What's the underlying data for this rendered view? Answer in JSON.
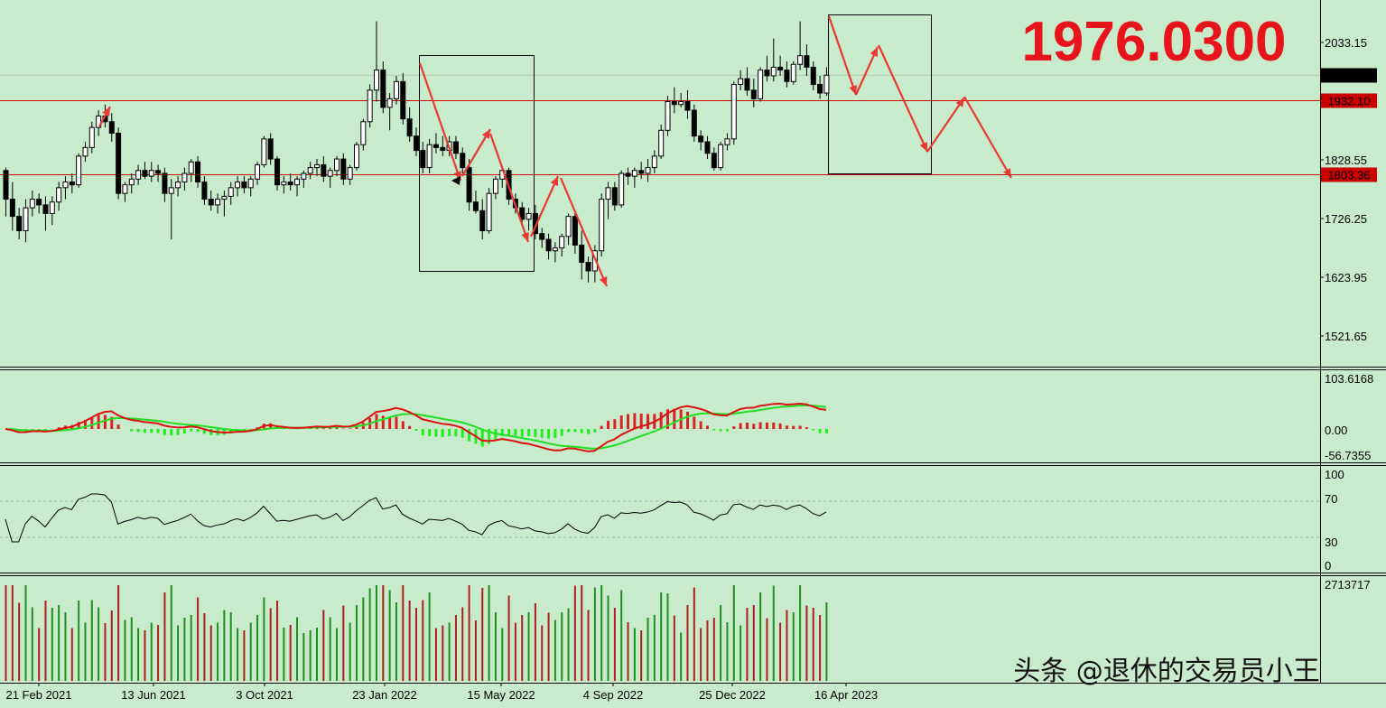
{
  "chart_data": [
    {
      "type": "candlestick",
      "panel": "price",
      "title": "1976.0300",
      "ylim": [
        1440,
        2110
      ],
      "yticks": [
        "2033.15",
        "1828.55",
        "1726.25",
        "1623.95",
        "1521.65"
      ],
      "x_labels": [
        "21 Feb 2021",
        "13 Jun 2021",
        "3 Oct 2021",
        "23 Jan 2022",
        "15 May 2022",
        "4 Sep 2022",
        "25 Dec 2022",
        "16 Apr 2023"
      ],
      "current_price": "1976.03",
      "levels": [
        {
          "label": "1932.10",
          "value": 1932.1,
          "color": "#cc0000"
        },
        {
          "label": "1803.36",
          "value": 1803.36,
          "color": "#cc0000"
        }
      ],
      "ohlc": [
        [
          1810,
          1815,
          1730,
          1760
        ],
        [
          1760,
          1790,
          1705,
          1730
        ],
        [
          1730,
          1745,
          1690,
          1705
        ],
        [
          1705,
          1760,
          1685,
          1745
        ],
        [
          1745,
          1775,
          1730,
          1760
        ],
        [
          1760,
          1770,
          1735,
          1750
        ],
        [
          1750,
          1765,
          1705,
          1735
        ],
        [
          1735,
          1765,
          1715,
          1755
        ],
        [
          1755,
          1790,
          1740,
          1780
        ],
        [
          1780,
          1800,
          1760,
          1790
        ],
        [
          1790,
          1805,
          1770,
          1785
        ],
        [
          1785,
          1840,
          1780,
          1835
        ],
        [
          1835,
          1860,
          1825,
          1850
        ],
        [
          1850,
          1895,
          1840,
          1885
        ],
        [
          1885,
          1915,
          1870,
          1905
        ],
        [
          1905,
          1925,
          1885,
          1895
        ],
        [
          1895,
          1910,
          1860,
          1875
        ],
        [
          1875,
          1885,
          1760,
          1770
        ],
        [
          1770,
          1790,
          1755,
          1785
        ],
        [
          1785,
          1805,
          1770,
          1795
        ],
        [
          1795,
          1820,
          1785,
          1810
        ],
        [
          1810,
          1825,
          1795,
          1800
        ],
        [
          1800,
          1825,
          1790,
          1810
        ],
        [
          1810,
          1820,
          1790,
          1805
        ],
        [
          1805,
          1815,
          1755,
          1770
        ],
        [
          1770,
          1795,
          1690,
          1780
        ],
        [
          1780,
          1800,
          1765,
          1790
        ],
        [
          1790,
          1815,
          1775,
          1805
        ],
        [
          1805,
          1830,
          1790,
          1825
        ],
        [
          1825,
          1835,
          1780,
          1790
        ],
        [
          1790,
          1800,
          1750,
          1760
        ],
        [
          1760,
          1775,
          1740,
          1750
        ],
        [
          1750,
          1770,
          1735,
          1760
        ],
        [
          1760,
          1775,
          1730,
          1765
        ],
        [
          1765,
          1790,
          1750,
          1780
        ],
        [
          1780,
          1800,
          1765,
          1790
        ],
        [
          1790,
          1800,
          1770,
          1780
        ],
        [
          1780,
          1800,
          1765,
          1795
        ],
        [
          1795,
          1825,
          1785,
          1820
        ],
        [
          1820,
          1870,
          1815,
          1865
        ],
        [
          1865,
          1875,
          1820,
          1830
        ],
        [
          1830,
          1835,
          1775,
          1785
        ],
        [
          1785,
          1800,
          1770,
          1790
        ],
        [
          1790,
          1805,
          1775,
          1785
        ],
        [
          1785,
          1800,
          1765,
          1795
        ],
        [
          1795,
          1810,
          1780,
          1805
        ],
        [
          1805,
          1825,
          1795,
          1815
        ],
        [
          1815,
          1830,
          1800,
          1820
        ],
        [
          1820,
          1835,
          1790,
          1800
        ],
        [
          1800,
          1815,
          1780,
          1810
        ],
        [
          1810,
          1835,
          1800,
          1830
        ],
        [
          1830,
          1840,
          1785,
          1795
        ],
        [
          1795,
          1820,
          1785,
          1815
        ],
        [
          1815,
          1860,
          1810,
          1855
        ],
        [
          1855,
          1900,
          1845,
          1895
        ],
        [
          1895,
          1960,
          1885,
          1950
        ],
        [
          1950,
          2070,
          1930,
          1985
        ],
        [
          1985,
          2000,
          1910,
          1920
        ],
        [
          1920,
          1945,
          1880,
          1935
        ],
        [
          1935,
          1975,
          1925,
          1965
        ],
        [
          1965,
          1980,
          1890,
          1900
        ],
        [
          1900,
          1920,
          1860,
          1870
        ],
        [
          1870,
          1885,
          1835,
          1845
        ],
        [
          1845,
          1860,
          1805,
          1815
        ],
        [
          1815,
          1865,
          1805,
          1855
        ],
        [
          1855,
          1875,
          1840,
          1850
        ],
        [
          1850,
          1870,
          1835,
          1845
        ],
        [
          1845,
          1870,
          1835,
          1860
        ],
        [
          1860,
          1870,
          1830,
          1840
        ],
        [
          1840,
          1850,
          1805,
          1815
        ],
        [
          1815,
          1830,
          1740,
          1755
        ],
        [
          1755,
          1775,
          1735,
          1740
        ],
        [
          1740,
          1760,
          1690,
          1705
        ],
        [
          1705,
          1780,
          1700,
          1770
        ],
        [
          1770,
          1800,
          1760,
          1795
        ],
        [
          1795,
          1815,
          1780,
          1810
        ],
        [
          1810,
          1815,
          1750,
          1760
        ],
        [
          1760,
          1770,
          1735,
          1745
        ],
        [
          1745,
          1755,
          1715,
          1725
        ],
        [
          1725,
          1745,
          1705,
          1735
        ],
        [
          1735,
          1750,
          1690,
          1700
        ],
        [
          1700,
          1710,
          1675,
          1690
        ],
        [
          1690,
          1700,
          1655,
          1670
        ],
        [
          1670,
          1685,
          1650,
          1675
        ],
        [
          1675,
          1700,
          1660,
          1695
        ],
        [
          1695,
          1735,
          1680,
          1730
        ],
        [
          1730,
          1740,
          1665,
          1680
        ],
        [
          1680,
          1705,
          1620,
          1650
        ],
        [
          1650,
          1660,
          1615,
          1635
        ],
        [
          1635,
          1680,
          1615,
          1670
        ],
        [
          1670,
          1770,
          1660,
          1760
        ],
        [
          1760,
          1790,
          1725,
          1780
        ],
        [
          1780,
          1790,
          1740,
          1750
        ],
        [
          1750,
          1810,
          1745,
          1805
        ],
        [
          1805,
          1815,
          1785,
          1800
        ],
        [
          1800,
          1815,
          1780,
          1810
        ],
        [
          1810,
          1825,
          1795,
          1805
        ],
        [
          1805,
          1830,
          1790,
          1815
        ],
        [
          1815,
          1845,
          1805,
          1835
        ],
        [
          1835,
          1890,
          1830,
          1880
        ],
        [
          1880,
          1940,
          1870,
          1930
        ],
        [
          1930,
          1955,
          1910,
          1925
        ],
        [
          1925,
          1945,
          1920,
          1930
        ],
        [
          1930,
          1950,
          1900,
          1915
        ],
        [
          1915,
          1925,
          1860,
          1870
        ],
        [
          1870,
          1880,
          1845,
          1860
        ],
        [
          1860,
          1870,
          1830,
          1840
        ],
        [
          1840,
          1850,
          1810,
          1815
        ],
        [
          1815,
          1860,
          1810,
          1855
        ],
        [
          1855,
          1875,
          1845,
          1865
        ],
        [
          1865,
          1965,
          1855,
          1960
        ],
        [
          1960,
          1985,
          1950,
          1970
        ],
        [
          1970,
          1990,
          1940,
          1950
        ],
        [
          1950,
          1970,
          1920,
          1935
        ],
        [
          1935,
          1990,
          1930,
          1985
        ],
        [
          1985,
          2010,
          1965,
          1975
        ],
        [
          1975,
          2040,
          1965,
          1990
        ],
        [
          1990,
          2010,
          1975,
          1985
        ],
        [
          1985,
          2000,
          1955,
          1965
        ],
        [
          1965,
          2000,
          1960,
          1995
        ],
        [
          1995,
          2070,
          1985,
          2010
        ],
        [
          2010,
          2030,
          1975,
          1990
        ],
        [
          1990,
          2000,
          1950,
          1960
        ],
        [
          1960,
          1975,
          1935,
          1945
        ],
        [
          1945,
          1990,
          1940,
          1976
        ]
      ]
    },
    {
      "type": "macd",
      "panel": "macd",
      "ylim": [
        -56.7355,
        103.6168
      ],
      "yticks": [
        "103.6168",
        "0.00",
        "-56.7355"
      ]
    },
    {
      "type": "line",
      "panel": "oscillator",
      "ylim": [
        0,
        100
      ],
      "yticks": [
        "100",
        "70",
        "30",
        "0"
      ],
      "levels": [
        70,
        30
      ]
    },
    {
      "type": "volume",
      "panel": "volume",
      "yticks": [
        "2713717"
      ],
      "max_value": 2713717
    }
  ],
  "watermark": "头条 @退休的交易员小王",
  "colors": {
    "background": "#c8ebcb",
    "bull": "#000000",
    "bear_fill": "#000000",
    "level_line": "#cc0000",
    "arrow": "#e83a33",
    "big_text": "#e8141b",
    "macd_signal": "#22dd22",
    "macd_line": "#dd1111",
    "hist_pos": "#dd2222",
    "hist_neg": "#22ee22",
    "vol_up": "#1f8f1f",
    "vol_down": "#b0201a"
  }
}
